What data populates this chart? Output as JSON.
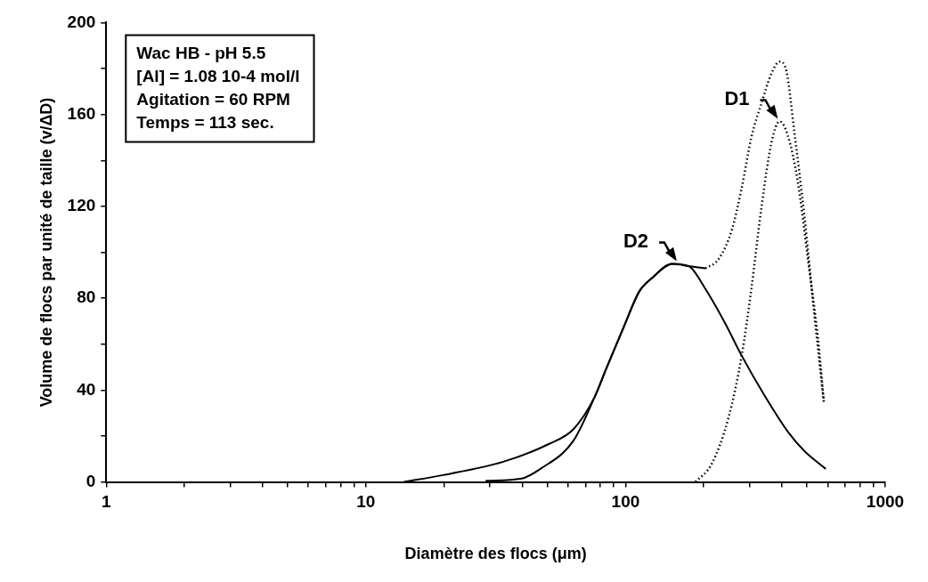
{
  "chart_data": {
    "type": "line",
    "xlabel": "Diamètre des flocs (μm)",
    "ylabel": "Volume de flocs par unité de taille (v/ΔD)",
    "log": "x",
    "xlim": [
      1,
      1000
    ],
    "ylim": [
      0,
      200
    ],
    "xticks": [
      1,
      {
        "value": 2,
        "label": null
      },
      {
        "value": 3,
        "label": null
      },
      {
        "value": 4,
        "label": null
      },
      {
        "value": 5,
        "label": null
      },
      {
        "value": 6,
        "label": null
      },
      {
        "value": 7,
        "label": null
      },
      {
        "value": 8,
        "label": null
      },
      {
        "value": 9,
        "label": null
      },
      10,
      {
        "value": 20,
        "label": null
      },
      {
        "value": 30,
        "label": null
      },
      {
        "value": 40,
        "label": null
      },
      {
        "value": 50,
        "label": null
      },
      {
        "value": 60,
        "label": null
      },
      {
        "value": 70,
        "label": null
      },
      {
        "value": 80,
        "label": null
      },
      {
        "value": 90,
        "label": null
      },
      100,
      {
        "value": 200,
        "label": null
      },
      {
        "value": 300,
        "label": null
      },
      {
        "value": 400,
        "label": null
      },
      {
        "value": 500,
        "label": null
      },
      {
        "value": 600,
        "label": null
      },
      {
        "value": 700,
        "label": null
      },
      {
        "value": 800,
        "label": null
      },
      {
        "value": 900,
        "label": null
      },
      1000
    ],
    "yticks": [
      0,
      {
        "value": 20,
        "label": null
      },
      40,
      {
        "value": 60,
        "label": null
      },
      80,
      {
        "value": 100,
        "label": null
      },
      120,
      {
        "value": 140,
        "label": null
      },
      160,
      {
        "value": 180,
        "label": null
      },
      200
    ],
    "grid": false,
    "legend": false,
    "marker": "none",
    "series": [
      {
        "color": "#000000",
        "line_style": "solid",
        "x": [
          14,
          19.8,
          33.8,
          50.8,
          63,
          76,
          84,
          98,
          113,
          127,
          151,
          175,
          203
        ],
        "values": [
          0,
          3,
          8.8,
          16.6,
          23,
          37,
          49,
          67,
          83,
          89,
          95,
          94,
          93
        ]
      },
      {
        "color": "#000000",
        "line_style": "dotted",
        "x": [
          203,
          228,
          257,
          280,
          305,
          334,
          365,
          392,
          416,
          447,
          488,
          532,
          580
        ],
        "values": [
          93,
          97,
          110,
          128,
          150,
          165,
          178,
          183,
          179,
          152,
          116,
          74,
          35
        ]
      },
      {
        "color": "#000000",
        "line_style": "solid",
        "x": [
          28.9,
          39.8,
          47,
          63,
          76,
          84,
          98,
          113,
          127,
          151,
          175,
          203,
          242,
          280,
          343,
          421,
          488,
          590
        ],
        "values": [
          0.5,
          1.5,
          5.7,
          18,
          37,
          49,
          67,
          83,
          89,
          95,
          94,
          84,
          69,
          55,
          37.6,
          22,
          13.5,
          5.7
        ]
      },
      {
        "color": "#000000",
        "line_style": "dotted",
        "x": [
          186,
          215,
          249,
          280,
          305,
          334,
          365,
          392,
          421,
          460,
          505,
          550,
          580
        ],
        "values": [
          0,
          8,
          28,
          55,
          84,
          120,
          148,
          157,
          151,
          131,
          96,
          63,
          35
        ]
      }
    ],
    "annotations": [
      "Wac HB - pH 5.5",
      "[Al] = 1.08 10-4 mol/l",
      "Agitation = 60 RPM",
      "Temps = 113 sec.",
      {
        "text": "D1",
        "x": 392,
        "y": 157
      },
      {
        "text": "D2",
        "x": 160,
        "y": 95
      }
    ]
  }
}
